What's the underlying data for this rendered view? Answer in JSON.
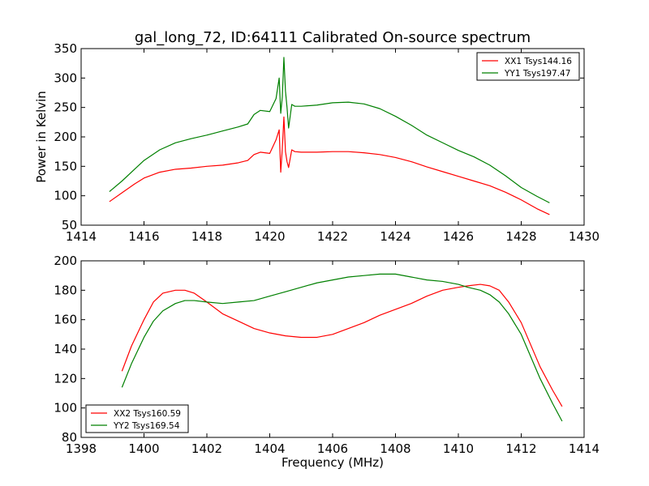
{
  "chart_data": [
    {
      "type": "line",
      "title": "gal_long_72, ID:64111 Calibrated On-source spectrum",
      "xlabel": "",
      "ylabel": "Power in Kelvin",
      "xlim": [
        1414,
        1430
      ],
      "ylim": [
        50,
        350
      ],
      "xticks": [
        1414,
        1416,
        1418,
        1420,
        1422,
        1424,
        1426,
        1428,
        1430
      ],
      "yticks": [
        50,
        100,
        150,
        200,
        250,
        300,
        350
      ],
      "legend_position": "top-right",
      "series": [
        {
          "name": "XX1 Tsys144.16",
          "color": "#ff0000",
          "x": [
            1414.9,
            1415.3,
            1415.7,
            1416.0,
            1416.5,
            1417.0,
            1417.5,
            1418.0,
            1418.5,
            1419.0,
            1419.3,
            1419.5,
            1419.7,
            1420.0,
            1420.2,
            1420.3,
            1420.35,
            1420.4,
            1420.45,
            1420.5,
            1420.55,
            1420.6,
            1420.7,
            1420.8,
            1421.0,
            1421.5,
            1422.0,
            1422.5,
            1423.0,
            1423.5,
            1424.0,
            1424.5,
            1425.0,
            1425.5,
            1426.0,
            1426.5,
            1427.0,
            1427.5,
            1428.0,
            1428.5,
            1428.9
          ],
          "y": [
            90,
            105,
            120,
            130,
            140,
            145,
            147,
            150,
            152,
            156,
            160,
            170,
            174,
            172,
            195,
            212,
            140,
            180,
            234,
            175,
            158,
            148,
            178,
            175,
            174,
            174,
            175,
            175,
            173,
            170,
            165,
            158,
            149,
            141,
            133,
            125,
            117,
            106,
            93,
            78,
            68
          ]
        },
        {
          "name": "YY1 Tsys197.47",
          "color": "#008000",
          "x": [
            1414.9,
            1415.3,
            1415.7,
            1416.0,
            1416.5,
            1417.0,
            1417.5,
            1418.0,
            1418.5,
            1419.0,
            1419.3,
            1419.5,
            1419.7,
            1420.0,
            1420.2,
            1420.3,
            1420.35,
            1420.4,
            1420.45,
            1420.5,
            1420.55,
            1420.6,
            1420.7,
            1420.8,
            1421.0,
            1421.5,
            1422.0,
            1422.5,
            1423.0,
            1423.5,
            1424.0,
            1424.5,
            1425.0,
            1425.5,
            1426.0,
            1426.5,
            1427.0,
            1427.5,
            1428.0,
            1428.5,
            1428.9
          ],
          "y": [
            107,
            125,
            145,
            160,
            178,
            190,
            197,
            203,
            210,
            217,
            222,
            238,
            245,
            243,
            265,
            300,
            240,
            268,
            335,
            278,
            250,
            215,
            255,
            252,
            252,
            254,
            258,
            259,
            256,
            248,
            235,
            220,
            203,
            190,
            177,
            166,
            152,
            134,
            114,
            99,
            88
          ]
        }
      ]
    },
    {
      "type": "line",
      "title": "",
      "xlabel": "Frequency (MHz)",
      "ylabel": "",
      "xlim": [
        1398,
        1414
      ],
      "ylim": [
        80,
        200
      ],
      "xticks": [
        1398,
        1400,
        1402,
        1404,
        1406,
        1408,
        1410,
        1412,
        1414
      ],
      "yticks": [
        80,
        100,
        120,
        140,
        160,
        180,
        200
      ],
      "legend_position": "bottom-left",
      "series": [
        {
          "name": "XX2 Tsys160.59",
          "color": "#ff0000",
          "x": [
            1399.3,
            1399.6,
            1400.0,
            1400.3,
            1400.6,
            1401.0,
            1401.3,
            1401.6,
            1402.0,
            1402.5,
            1403.0,
            1403.5,
            1404.0,
            1404.5,
            1405.0,
            1405.5,
            1406.0,
            1406.5,
            1407.0,
            1407.5,
            1408.0,
            1408.5,
            1409.0,
            1409.5,
            1410.0,
            1410.3,
            1410.7,
            1411.0,
            1411.3,
            1411.6,
            1412.0,
            1412.3,
            1412.6,
            1413.0,
            1413.3
          ],
          "y": [
            125,
            142,
            160,
            172,
            178,
            180,
            180,
            178,
            172,
            164,
            159,
            154,
            151,
            149,
            148,
            148,
            150,
            154,
            158,
            163,
            167,
            171,
            176,
            180,
            182,
            183,
            184,
            183,
            180,
            172,
            158,
            143,
            128,
            112,
            101
          ]
        },
        {
          "name": "YY2 Tsys169.54",
          "color": "#008000",
          "x": [
            1399.3,
            1399.6,
            1400.0,
            1400.3,
            1400.6,
            1401.0,
            1401.3,
            1401.6,
            1402.0,
            1402.5,
            1403.0,
            1403.5,
            1404.0,
            1404.5,
            1405.0,
            1405.5,
            1406.0,
            1406.5,
            1407.0,
            1407.5,
            1408.0,
            1408.5,
            1409.0,
            1409.5,
            1410.0,
            1410.3,
            1410.7,
            1411.0,
            1411.3,
            1411.6,
            1412.0,
            1412.3,
            1412.6,
            1413.0,
            1413.3
          ],
          "y": [
            114,
            130,
            148,
            159,
            166,
            171,
            173,
            173,
            172,
            171,
            172,
            173,
            176,
            179,
            182,
            185,
            187,
            189,
            190,
            191,
            191,
            189,
            187,
            186,
            184,
            182,
            180,
            177,
            172,
            164,
            150,
            135,
            120,
            103,
            91
          ]
        }
      ]
    }
  ]
}
